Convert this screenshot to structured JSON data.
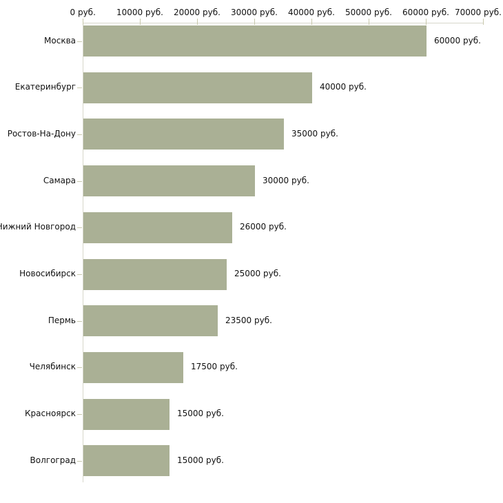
{
  "chart_data": {
    "type": "bar",
    "orientation": "horizontal",
    "title": "",
    "xlabel": "",
    "ylabel": "",
    "unit": "руб.",
    "categories": [
      "Москва",
      "Екатеринбург",
      "Ростов-На-Дону",
      "Самара",
      "Нижний Новгород",
      "Новосибирск",
      "Пермь",
      "Челябинск",
      "Красноярск",
      "Волгоград"
    ],
    "values": [
      60000,
      40000,
      35000,
      30000,
      26000,
      25000,
      23500,
      17500,
      15000,
      15000
    ],
    "value_labels": [
      "60000 руб.",
      "40000 руб.",
      "35000 руб.",
      "30000 руб.",
      "26000 руб.",
      "25000 руб.",
      "23500 руб.",
      "17500 руб.",
      "15000 руб.",
      "15000 руб."
    ],
    "x_ticks": [
      0,
      10000,
      20000,
      30000,
      40000,
      50000,
      60000,
      70000
    ],
    "x_tick_labels": [
      "0 руб.",
      "10000 руб.",
      "20000 руб.",
      "30000 руб.",
      "40000 руб.",
      "50000 руб.",
      "60000 руб.",
      "70000 руб."
    ],
    "xlim": [
      0,
      70000
    ],
    "axis_position": "top",
    "grid": false,
    "legend": false,
    "colors": {
      "bar": "#aab095",
      "axis_line": "#d6d6ca",
      "tick": "#c8c8ac",
      "text": "#111111",
      "background": "#ffffff"
    }
  }
}
